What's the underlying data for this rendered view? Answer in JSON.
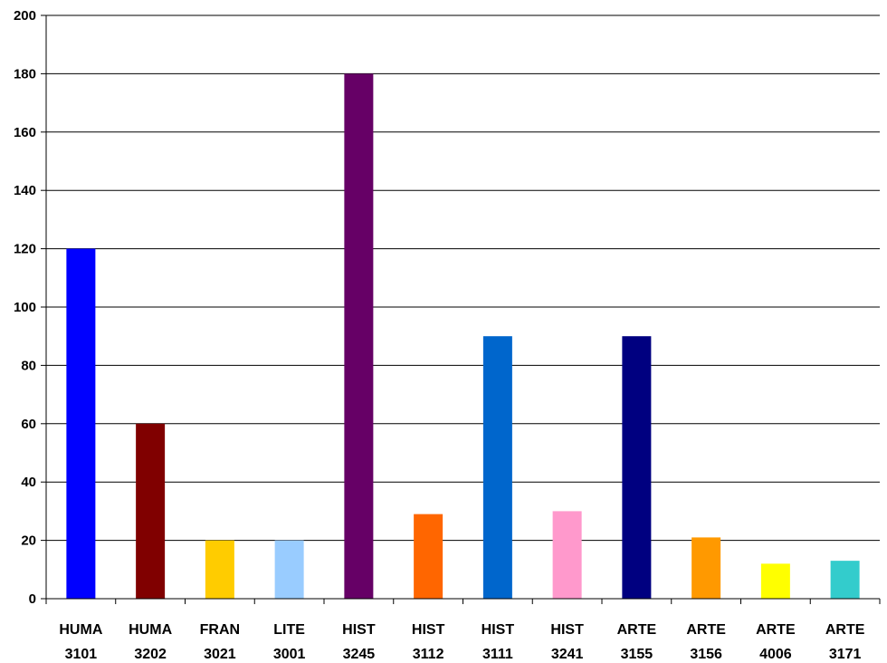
{
  "chart_data": {
    "type": "bar",
    "categories": [
      [
        "HUMA",
        "3101"
      ],
      [
        "HUMA",
        "3202"
      ],
      [
        "FRAN",
        "3021"
      ],
      [
        "LITE",
        "3001"
      ],
      [
        "HIST",
        "3245"
      ],
      [
        "HIST",
        "3112"
      ],
      [
        "HIST",
        "3111"
      ],
      [
        "HIST",
        "3241"
      ],
      [
        "ARTE",
        "3155"
      ],
      [
        "ARTE",
        "3156"
      ],
      [
        "ARTE",
        "4006"
      ],
      [
        "ARTE",
        "3171"
      ]
    ],
    "values": [
      120,
      60,
      20,
      20,
      180,
      29,
      90,
      30,
      90,
      21,
      12,
      13
    ],
    "colors": [
      "#0000FF",
      "#800000",
      "#FFCC00",
      "#99CCFF",
      "#660066",
      "#FF6600",
      "#0066CC",
      "#FF99CC",
      "#000080",
      "#FF9900",
      "#FFFF00",
      "#33CCCC"
    ],
    "ylim": [
      0,
      200
    ],
    "yticks": [
      "0",
      "20",
      "40",
      "60",
      "80",
      "100",
      "120",
      "140",
      "160",
      "180",
      "200"
    ],
    "grid": true,
    "legend": "none",
    "title": "",
    "xlabel": "",
    "ylabel": ""
  }
}
